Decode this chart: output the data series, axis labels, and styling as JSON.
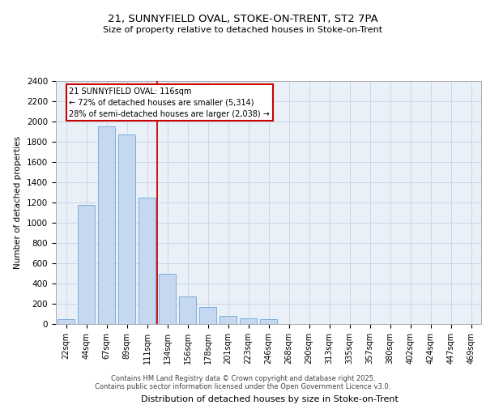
{
  "title_line1": "21, SUNNYFIELD OVAL, STOKE-ON-TRENT, ST2 7PA",
  "title_line2": "Size of property relative to detached houses in Stoke-on-Trent",
  "xlabel": "Distribution of detached houses by size in Stoke-on-Trent",
  "ylabel": "Number of detached properties",
  "categories": [
    "22sqm",
    "44sqm",
    "67sqm",
    "89sqm",
    "111sqm",
    "134sqm",
    "156sqm",
    "178sqm",
    "201sqm",
    "223sqm",
    "246sqm",
    "268sqm",
    "290sqm",
    "313sqm",
    "335sqm",
    "357sqm",
    "380sqm",
    "402sqm",
    "424sqm",
    "447sqm",
    "469sqm"
  ],
  "values": [
    50,
    1180,
    1950,
    1870,
    1250,
    500,
    270,
    170,
    80,
    55,
    50,
    0,
    0,
    0,
    0,
    0,
    0,
    0,
    0,
    0,
    0
  ],
  "bar_color": "#c5d8f0",
  "bar_edge_color": "#6fa8dc",
  "grid_color": "#c8d8e8",
  "background_color": "#eaf0f8",
  "annotation_text": "21 SUNNYFIELD OVAL: 116sqm\n← 72% of detached houses are smaller (5,314)\n28% of semi-detached houses are larger (2,038) →",
  "annotation_box_color": "#ffffff",
  "annotation_border_color": "#cc0000",
  "ylim": [
    0,
    2400
  ],
  "yticks": [
    0,
    200,
    400,
    600,
    800,
    1000,
    1200,
    1400,
    1600,
    1800,
    2000,
    2200,
    2400
  ],
  "vline_x": 4.5,
  "footer_line1": "Contains HM Land Registry data © Crown copyright and database right 2025.",
  "footer_line2": "Contains public sector information licensed under the Open Government Licence v3.0."
}
